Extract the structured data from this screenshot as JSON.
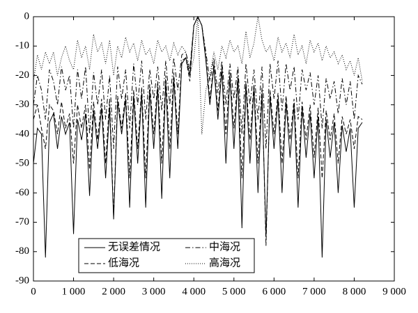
{
  "chart_data": {
    "type": "line",
    "x": [
      0,
      100,
      200,
      300,
      400,
      500,
      600,
      700,
      800,
      900,
      1000,
      1100,
      1200,
      1300,
      1400,
      1500,
      1600,
      1700,
      1800,
      1900,
      2000,
      2100,
      2200,
      2300,
      2400,
      2500,
      2600,
      2700,
      2800,
      2900,
      3000,
      3100,
      3200,
      3300,
      3400,
      3500,
      3600,
      3700,
      3800,
      3900,
      4000,
      4100,
      4200,
      4300,
      4400,
      4500,
      4600,
      4700,
      4800,
      4900,
      5000,
      5100,
      5200,
      5300,
      5400,
      5500,
      5600,
      5700,
      5800,
      5900,
      6000,
      6100,
      6200,
      6300,
      6400,
      6500,
      6600,
      6700,
      6800,
      6900,
      7000,
      7100,
      7200,
      7300,
      7400,
      7500,
      7600,
      7700,
      7800,
      7900,
      8000,
      8100,
      8200
    ],
    "series": [
      {
        "name": "无误差情况",
        "color": "#000000",
        "dash": "solid",
        "values": [
          -50,
          -38,
          -40,
          -82,
          -36,
          -33,
          -45,
          -34,
          -40,
          -36,
          -74,
          -35,
          -42,
          -33,
          -61,
          -32,
          -45,
          -31,
          -55,
          -31,
          -69,
          -29,
          -40,
          -28,
          -65,
          -27,
          -50,
          -26,
          -65,
          -25,
          -45,
          -24,
          -62,
          -22,
          -55,
          -21,
          -45,
          -16,
          -14,
          -20,
          -3,
          0,
          -3,
          -15,
          -30,
          -17,
          -35,
          -18,
          -50,
          -20,
          -45,
          -21,
          -72,
          -23,
          -50,
          -24,
          -60,
          -26,
          -75,
          -27,
          -45,
          -28,
          -60,
          -29,
          -48,
          -30,
          -65,
          -31,
          -48,
          -33,
          -55,
          -34,
          -82,
          -35,
          -48,
          -36,
          -60,
          -37,
          -46,
          -38,
          -65,
          -38,
          -36
        ]
      },
      {
        "name": "低海况",
        "color": "#000000",
        "dash": "dashed",
        "values": [
          -35,
          -30,
          -38,
          -45,
          -30,
          -32,
          -40,
          -29,
          -38,
          -33,
          -50,
          -30,
          -38,
          -30,
          -52,
          -29,
          -42,
          -28,
          -50,
          -28,
          -68,
          -27,
          -38,
          -26,
          -55,
          -25,
          -45,
          -24,
          -55,
          -23,
          -40,
          -22,
          -50,
          -20,
          -45,
          -19,
          -40,
          -15,
          -14,
          -22,
          -3,
          0,
          -3,
          -14,
          -28,
          -16,
          -32,
          -17,
          -40,
          -19,
          -38,
          -20,
          -55,
          -22,
          -42,
          -23,
          -50,
          -24,
          -78,
          -25,
          -40,
          -26,
          -50,
          -27,
          -42,
          -28,
          -55,
          -29,
          -42,
          -30,
          -48,
          -31,
          -55,
          -32,
          -42,
          -33,
          -50,
          -34,
          -40,
          -35,
          -45,
          -34,
          -35
        ]
      },
      {
        "name": "中海况",
        "color": "#000000",
        "dash": "dashdot",
        "values": [
          -30,
          -20,
          -25,
          -35,
          -18,
          -22,
          -30,
          -17,
          -25,
          -20,
          -38,
          -18,
          -28,
          -17,
          -40,
          -19,
          -30,
          -18,
          -35,
          -20,
          -45,
          -17,
          -28,
          -18,
          -38,
          -16,
          -30,
          -15,
          -35,
          -18,
          -28,
          -17,
          -32,
          -15,
          -30,
          -14,
          -25,
          -13,
          -12,
          -18,
          -3,
          0,
          -3,
          -12,
          -22,
          -14,
          -26,
          -15,
          -30,
          -16,
          -28,
          -17,
          -40,
          -16,
          -30,
          -18,
          -35,
          -17,
          -45,
          -16,
          -28,
          -15,
          -32,
          -16,
          -25,
          -17,
          -35,
          -18,
          -25,
          -19,
          -30,
          -20,
          -38,
          -21,
          -28,
          -22,
          -33,
          -21,
          -30,
          -22,
          -35,
          -20,
          -23
        ]
      },
      {
        "name": "高海况",
        "color": "#000000",
        "dash": "dotted",
        "values": [
          -22,
          -13,
          -18,
          -12,
          -16,
          -12,
          -20,
          -14,
          -10,
          -15,
          -18,
          -8,
          -14,
          -10,
          -18,
          -6,
          -12,
          -9,
          -16,
          -8,
          -20,
          -10,
          -14,
          -7,
          -12,
          -9,
          -15,
          -8,
          -13,
          -11,
          -16,
          -8,
          -12,
          -10,
          -15,
          -9,
          -13,
          -10,
          -12,
          -20,
          -14,
          0,
          -40,
          -25,
          -20,
          -12,
          -18,
          -10,
          -14,
          -8,
          -12,
          -10,
          -16,
          -5,
          -14,
          -9,
          0,
          -8,
          -12,
          -10,
          -15,
          -7,
          -12,
          -9,
          -14,
          -6,
          -13,
          -10,
          -16,
          -8,
          -12,
          -9,
          -15,
          -10,
          -14,
          -12,
          -16,
          -13,
          -18,
          -15,
          -20,
          -14,
          -22
        ]
      }
    ],
    "xlim": [
      0,
      9000
    ],
    "xticks": [
      0,
      {
        "value": 1000,
        "label": "1 000"
      },
      {
        "value": 2000,
        "label": "2 000"
      },
      {
        "value": 3000,
        "label": "3 000"
      },
      {
        "value": 4000,
        "label": "4 000"
      },
      {
        "value": 5000,
        "label": "5 000"
      },
      {
        "value": 6000,
        "label": "6 000"
      },
      {
        "value": 7000,
        "label": "7 000"
      },
      {
        "value": 8000,
        "label": "8 000"
      },
      {
        "value": 9000,
        "label": "9 000"
      }
    ],
    "ylim": [
      -90,
      0
    ],
    "yticks": [
      0,
      -10,
      -20,
      -30,
      -40,
      -50,
      -60,
      -70,
      -80,
      -90
    ],
    "grid": false,
    "legend": "lower-left"
  }
}
